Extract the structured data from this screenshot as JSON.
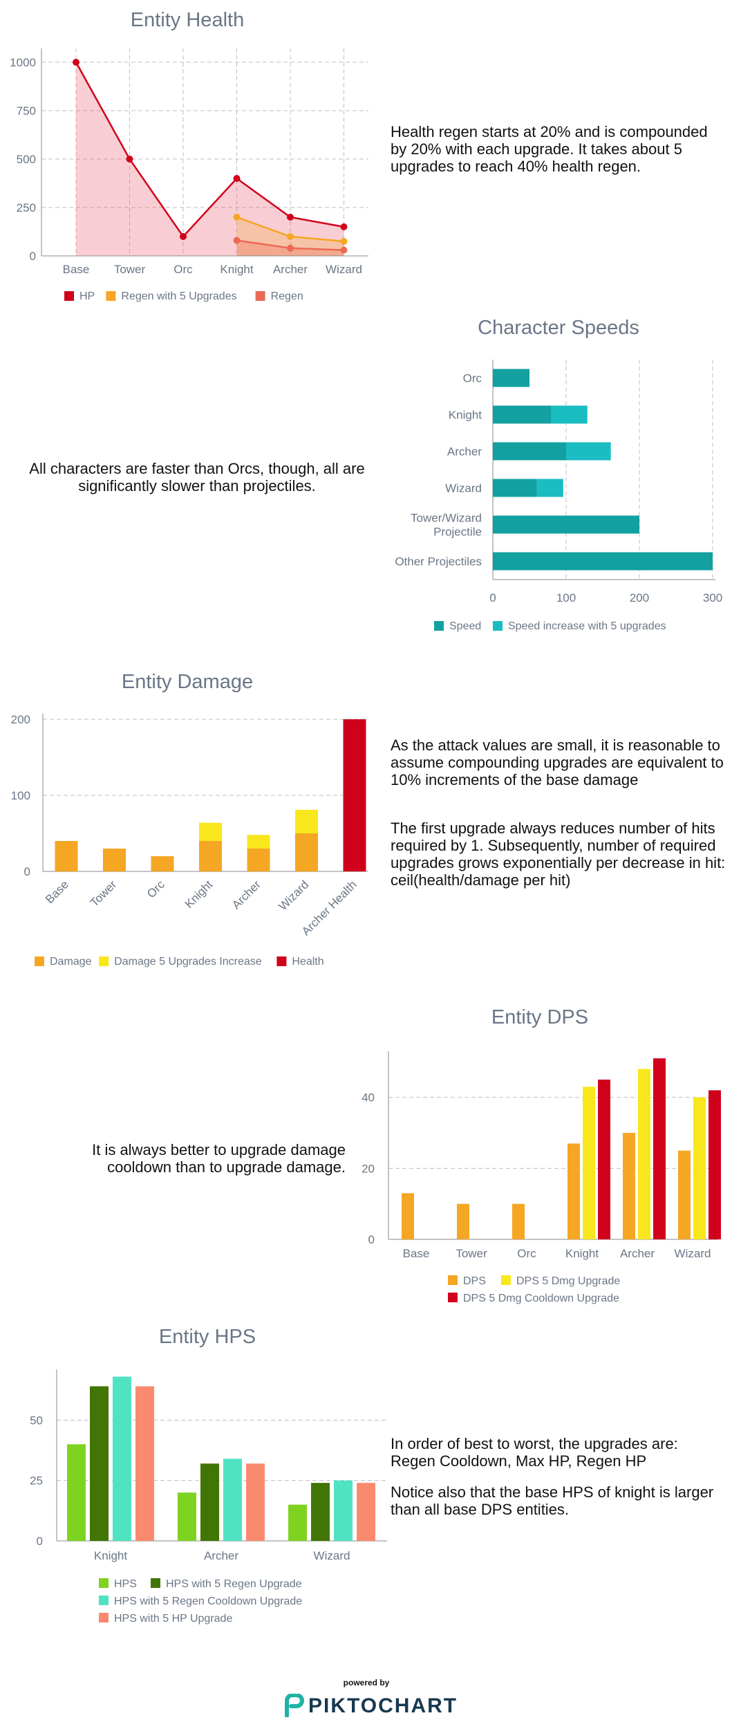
{
  "descriptions": {
    "health": "Health regen starts at 20% and is compounded by 20% with each upgrade. It takes about 5 upgrades to reach 40% health regen.",
    "speeds": "All characters are faster than Orcs, though, all are significantly slower than projectiles.",
    "damage_1": "As the attack values are small, it is reasonable to assume compounding upgrades are equivalent to 10% increments of the base damage",
    "damage_2": "The first upgrade always reduces number of hits required by 1. Subsequently, number of required upgrades grows exponentially per decrease in hit:\nceil(health/damage per hit)",
    "dps": "It is always better to upgrade damage cooldown than to upgrade damage.",
    "hps_1": "In order of best to worst, the upgrades are: Regen Cooldown, Max HP, Regen HP",
    "hps_2": "Notice also that the base HPS of knight is larger than all base DPS entities."
  },
  "footer": {
    "powered_by": "powered by",
    "brand": "PIKTOCHART",
    "brand_color": "#16394f",
    "logo_color": "#20b3a7"
  },
  "chart_data": [
    {
      "id": "health",
      "type": "line",
      "title": "Entity Health",
      "categories": [
        "Base",
        "Tower",
        "Orc",
        "Knight",
        "Archer",
        "Wizard"
      ],
      "yticks": [
        0,
        250,
        500,
        750,
        1000
      ],
      "ylim": [
        0,
        1000
      ],
      "grid": true,
      "legend_position": "bottom",
      "series": [
        {
          "name": "HP",
          "color": "#d0021b",
          "values": [
            1000,
            500,
            100,
            400,
            200,
            150
          ]
        },
        {
          "name": "Regen with 5 Upgrades",
          "color": "#f5a623",
          "values": [
            null,
            null,
            null,
            200,
            100,
            75
          ]
        },
        {
          "name": "Regen",
          "color": "#eb6a55",
          "values": [
            null,
            null,
            null,
            80,
            40,
            30
          ]
        }
      ]
    },
    {
      "id": "speeds",
      "type": "bar",
      "orientation": "horizontal",
      "stacked": true,
      "title": "Character Speeds",
      "categories": [
        "Orc",
        "Knight",
        "Archer",
        "Wizard",
        "Tower/Wizard\nProjectile",
        "Other Projectiles"
      ],
      "xticks": [
        0,
        100,
        200,
        300
      ],
      "xlim": [
        0,
        300
      ],
      "grid": true,
      "legend_position": "bottom",
      "series": [
        {
          "name": "Speed",
          "color": "#12a0a0",
          "values": [
            50,
            80,
            100,
            60,
            200,
            300
          ]
        },
        {
          "name": "Speed increase with 5 upgrades",
          "color": "#19bdc2",
          "values": [
            0,
            49,
            61,
            36,
            0,
            0
          ]
        }
      ]
    },
    {
      "id": "damage",
      "type": "bar",
      "stacked": true,
      "title": "Entity Damage",
      "categories": [
        "Base",
        "Tower",
        "Orc",
        "Knight",
        "Archer",
        "Wizard",
        "Archer Health"
      ],
      "yticks": [
        0,
        100,
        200
      ],
      "ylim": [
        0,
        200
      ],
      "grid": true,
      "legend_position": "bottom",
      "series": [
        {
          "name": "Damage",
          "color": "#f5a623",
          "values": [
            40,
            30,
            20,
            40,
            30,
            50,
            0
          ]
        },
        {
          "name": "Damage 5 Upgrades Increase",
          "color": "#f8e71c",
          "values": [
            0,
            0,
            0,
            24,
            18,
            31,
            0
          ]
        },
        {
          "name": "Health",
          "color": "#d0021b",
          "values": [
            0,
            0,
            0,
            0,
            0,
            0,
            200
          ]
        }
      ]
    },
    {
      "id": "dps",
      "type": "bar",
      "title": "Entity DPS",
      "categories": [
        "Base",
        "Tower",
        "Orc",
        "Knight",
        "Archer",
        "Wizard"
      ],
      "yticks": [
        0,
        20,
        40
      ],
      "ylim": [
        0,
        53
      ],
      "grid": true,
      "legend_position": "bottom",
      "series": [
        {
          "name": "DPS",
          "color": "#f5a623",
          "values": [
            13,
            10,
            10,
            27,
            30,
            25
          ]
        },
        {
          "name": "DPS 5 Dmg Upgrade",
          "color": "#f8e71c",
          "values": [
            null,
            null,
            null,
            43,
            48,
            40
          ]
        },
        {
          "name": "DPS 5 Dmg Cooldown Upgrade",
          "color": "#d0021b",
          "values": [
            null,
            null,
            null,
            45,
            51,
            42
          ]
        }
      ]
    },
    {
      "id": "hps",
      "type": "bar",
      "title": "Entity HPS",
      "categories": [
        "Knight",
        "Archer",
        "Wizard"
      ],
      "yticks": [
        0,
        25,
        50
      ],
      "ylim": [
        0,
        71
      ],
      "grid": true,
      "legend_position": "bottom",
      "series": [
        {
          "name": "HPS",
          "color": "#7ed321",
          "values": [
            40,
            20,
            15
          ]
        },
        {
          "name": "HPS with 5 Regen Upgrade",
          "color": "#417505",
          "values": [
            64,
            32,
            24
          ]
        },
        {
          "name": "HPS with 5 Regen Cooldown Upgrade",
          "color": "#50e3c2",
          "values": [
            68,
            34,
            25
          ]
        },
        {
          "name": "HPS with 5 HP Upgrade",
          "color": "#fa8a6e",
          "values": [
            64,
            32,
            24
          ]
        }
      ]
    }
  ]
}
